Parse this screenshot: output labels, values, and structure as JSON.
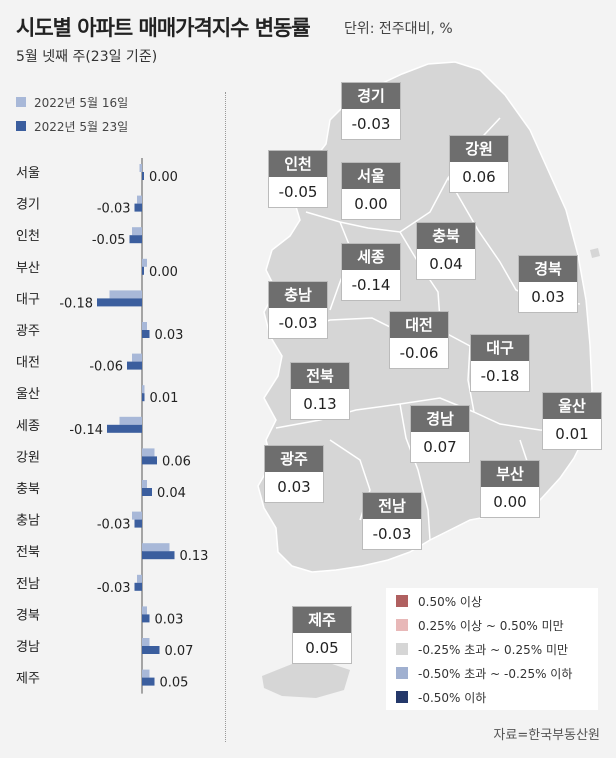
{
  "header": {
    "title": "시도별 아파트 매매가격지수 변동률",
    "unit": "단위: 전주대비, %",
    "subtitle": "5월 넷째 주(23일 기준)"
  },
  "colors": {
    "prev": "#a8b8d8",
    "curr": "#3b5e9e"
  },
  "chart_data": {
    "type": "bar",
    "orientation": "horizontal",
    "categories": [
      "서울",
      "경기",
      "인천",
      "부산",
      "대구",
      "광주",
      "대전",
      "울산",
      "세종",
      "강원",
      "충북",
      "충남",
      "전북",
      "전남",
      "경북",
      "경남",
      "제주"
    ],
    "series": [
      {
        "name": "2022년 5월 16일",
        "values": [
          -0.01,
          -0.02,
          -0.04,
          0.02,
          -0.13,
          0.02,
          -0.04,
          0.01,
          -0.09,
          0.05,
          0.02,
          -0.04,
          0.11,
          -0.02,
          0.02,
          0.03,
          0.03
        ]
      },
      {
        "name": "2022년 5월 23일",
        "values": [
          0.0,
          -0.03,
          -0.05,
          0.0,
          -0.18,
          0.03,
          -0.06,
          0.01,
          -0.14,
          0.06,
          0.04,
          -0.03,
          0.13,
          -0.03,
          0.03,
          0.07,
          0.05
        ]
      }
    ],
    "value_labels": [
      "0.00",
      "-0.03",
      "-0.05",
      "0.00",
      "-0.18",
      "0.03",
      "-0.06",
      "0.01",
      "-0.14",
      "0.06",
      "0.04",
      "-0.03",
      "0.13",
      "-0.03",
      "0.03",
      "0.07",
      "0.05"
    ]
  },
  "map": {
    "regions": [
      {
        "name": "경기",
        "value": "-0.03"
      },
      {
        "name": "인천",
        "value": "-0.05"
      },
      {
        "name": "서울",
        "value": "0.00"
      },
      {
        "name": "강원",
        "value": "0.06"
      },
      {
        "name": "세종",
        "value": "-0.14"
      },
      {
        "name": "충북",
        "value": "0.04"
      },
      {
        "name": "경북",
        "value": "0.03"
      },
      {
        "name": "충남",
        "value": "-0.03"
      },
      {
        "name": "대전",
        "value": "-0.06"
      },
      {
        "name": "대구",
        "value": "-0.18"
      },
      {
        "name": "전북",
        "value": "0.13"
      },
      {
        "name": "울산",
        "value": "0.01"
      },
      {
        "name": "경남",
        "value": "0.07"
      },
      {
        "name": "광주",
        "value": "0.03"
      },
      {
        "name": "부산",
        "value": "0.00"
      },
      {
        "name": "전남",
        "value": "-0.03"
      },
      {
        "name": "제주",
        "value": "0.05"
      }
    ],
    "legend": [
      {
        "label": "0.50% 이상",
        "color": "#b06060"
      },
      {
        "label": "0.25% 이상 ~ 0.50% 미만",
        "color": "#e8b8b8"
      },
      {
        "label": "-0.25% 초과 ~ 0.25% 미만",
        "color": "#d6d6d6"
      },
      {
        "label": "-0.50% 초과 ~ -0.25% 이하",
        "color": "#a0b0d0"
      },
      {
        "label": "-0.50% 이하",
        "color": "#24386a"
      }
    ]
  },
  "source": "자료=한국부동산원"
}
